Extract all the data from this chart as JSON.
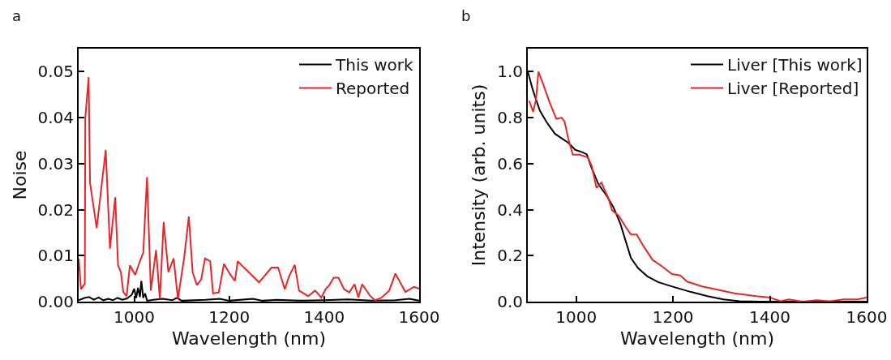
{
  "chart_data": [
    {
      "type": "line",
      "annotations": [
        "a"
      ],
      "xlabel": "Wavelength (nm)",
      "ylabel": "Noise",
      "xlim": [
        883,
        1600
      ],
      "xticks": [
        1000,
        1200,
        1400,
        1600
      ],
      "ylim": [
        0,
        0.055
      ],
      "yticks": [
        {
          "value": 0,
          "label": "0.00"
        },
        {
          "value": 0.01,
          "label": "0.01"
        },
        {
          "value": 0.02,
          "label": "0.02"
        },
        {
          "value": 0.03,
          "label": "0.03"
        },
        {
          "value": 0.04,
          "label": "0.04"
        },
        {
          "value": 0.05,
          "label": "0.05"
        }
      ],
      "grid": false,
      "legend": "top right",
      "line_style": "solid",
      "marker": "none",
      "series": [
        {
          "name": "This work",
          "color": "#000000",
          "x": [
            883,
            895,
            905,
            915,
            925,
            935,
            945,
            955,
            965,
            975,
            985,
            995,
            1000,
            1004,
            1008,
            1012,
            1015,
            1019,
            1023,
            1027,
            1040,
            1060,
            1080,
            1090,
            1100,
            1150,
            1180,
            1200,
            1250,
            1270,
            1300,
            1350,
            1400,
            1450,
            1500,
            1550,
            1580,
            1600
          ],
          "values": [
            0.0003,
            0.0008,
            0.001,
            0.0004,
            0.0009,
            0.0003,
            0.0006,
            0.0003,
            0.0008,
            0.0004,
            0.0007,
            0.0015,
            0.0028,
            0.0008,
            0.003,
            0.001,
            0.0045,
            0.0008,
            0.0018,
            0.0002,
            0.0004,
            0.0006,
            0.0003,
            0.0008,
            0.0002,
            0.0004,
            0.0006,
            0.0002,
            0.0006,
            0.0002,
            0.0004,
            0.0002,
            0.0003,
            0.0005,
            0.0002,
            0.0003,
            0.0006,
            0.0002
          ]
        },
        {
          "name": "Reported",
          "color": "#e8262a",
          "x": [
            883,
            888,
            896,
            897,
            904,
            907,
            921,
            940,
            949,
            960,
            966,
            972,
            977,
            984,
            991,
            1002,
            1011,
            1019,
            1027,
            1035,
            1046,
            1054,
            1062,
            1072,
            1083,
            1092,
            1105,
            1115,
            1123,
            1132,
            1141,
            1149,
            1160,
            1166,
            1178,
            1189,
            1201,
            1212,
            1218,
            1232,
            1263,
            1289,
            1303,
            1317,
            1326,
            1338,
            1347,
            1366,
            1381,
            1394,
            1403,
            1411,
            1420,
            1430,
            1442,
            1453,
            1464,
            1472,
            1480,
            1497,
            1507,
            1520,
            1537,
            1550,
            1571,
            1589,
            1600
          ],
          "values": [
            0.0094,
            0.0027,
            0.0039,
            0.04,
            0.0488,
            0.0258,
            0.016,
            0.033,
            0.0115,
            0.0227,
            0.0079,
            0.0064,
            0.0021,
            0.0012,
            0.0079,
            0.0058,
            0.0085,
            0.0106,
            0.0271,
            0.0024,
            0.0112,
            0.0006,
            0.0173,
            0.0064,
            0.0094,
            0.0006,
            0.0094,
            0.0185,
            0.0064,
            0.0036,
            0.0048,
            0.0094,
            0.0088,
            0.0018,
            0.002,
            0.0082,
            0.0061,
            0.0045,
            0.0088,
            0.0073,
            0.0042,
            0.0074,
            0.0074,
            0.0027,
            0.0055,
            0.008,
            0.0024,
            0.0012,
            0.0024,
            0.0009,
            0.0027,
            0.0036,
            0.0052,
            0.0052,
            0.0027,
            0.002,
            0.0038,
            0.0009,
            0.0038,
            0.0012,
            0.0003,
            0.0008,
            0.0024,
            0.0061,
            0.0021,
            0.0032,
            0.0028
          ]
        }
      ]
    },
    {
      "type": "line",
      "annotations": [
        "b"
      ],
      "xlabel": "Wavelength (nm)",
      "ylabel": "Intensity (arb. units)",
      "xlim": [
        900,
        1600
      ],
      "xticks": [
        1000,
        1200,
        1400,
        1600
      ],
      "ylim": [
        0,
        1.1
      ],
      "yticks": [
        {
          "value": 0,
          "label": "0.0"
        },
        {
          "value": 0.2,
          "label": "0.2"
        },
        {
          "value": 0.4,
          "label": "0.4"
        },
        {
          "value": 0.6,
          "label": "0.6"
        },
        {
          "value": 0.8,
          "label": "0.8"
        },
        {
          "value": 1,
          "label": "1.0"
        }
      ],
      "grid": false,
      "legend": "top right",
      "line_style": "solid",
      "marker": "none",
      "series": [
        {
          "name": "Liver [This work]",
          "color": "#000000",
          "x": [
            900,
            911,
            925,
            939,
            956,
            970,
            984,
            998,
            1012,
            1022,
            1032,
            1046,
            1063,
            1077,
            1091,
            1102,
            1113,
            1128,
            1147,
            1170,
            1201,
            1237,
            1271,
            1304,
            1338,
            1383,
            1439,
            1600
          ],
          "values": [
            1.0,
            0.916,
            0.83,
            0.78,
            0.73,
            0.71,
            0.69,
            0.66,
            0.65,
            0.64,
            0.58,
            0.51,
            0.46,
            0.41,
            0.34,
            0.265,
            0.19,
            0.145,
            0.11,
            0.084,
            0.064,
            0.042,
            0.024,
            0.01,
            0.002,
            0,
            0,
            0
          ]
        },
        {
          "name": "Liver [Reported]",
          "color": "#e8262a",
          "x": [
            903,
            911,
            917,
            922,
            931,
            945,
            959,
            970,
            976,
            984,
            993,
            1007,
            1024,
            1032,
            1042,
            1052,
            1066,
            1074,
            1088,
            1102,
            1113,
            1125,
            1139,
            1158,
            1175,
            1198,
            1215,
            1229,
            1260,
            1288,
            1327,
            1372,
            1400,
            1422,
            1439,
            1467,
            1496,
            1524,
            1552,
            1580,
            1600
          ],
          "values": [
            0.873,
            0.825,
            0.88,
            1.0,
            0.95,
            0.867,
            0.795,
            0.8,
            0.783,
            0.705,
            0.639,
            0.639,
            0.627,
            0.59,
            0.494,
            0.518,
            0.452,
            0.398,
            0.373,
            0.325,
            0.292,
            0.292,
            0.241,
            0.181,
            0.157,
            0.12,
            0.114,
            0.087,
            0.066,
            0.054,
            0.036,
            0.024,
            0.018,
            0.002,
            0.01,
            0,
            0.006,
            0.002,
            0.01,
            0.01,
            0.018
          ]
        }
      ]
    }
  ]
}
